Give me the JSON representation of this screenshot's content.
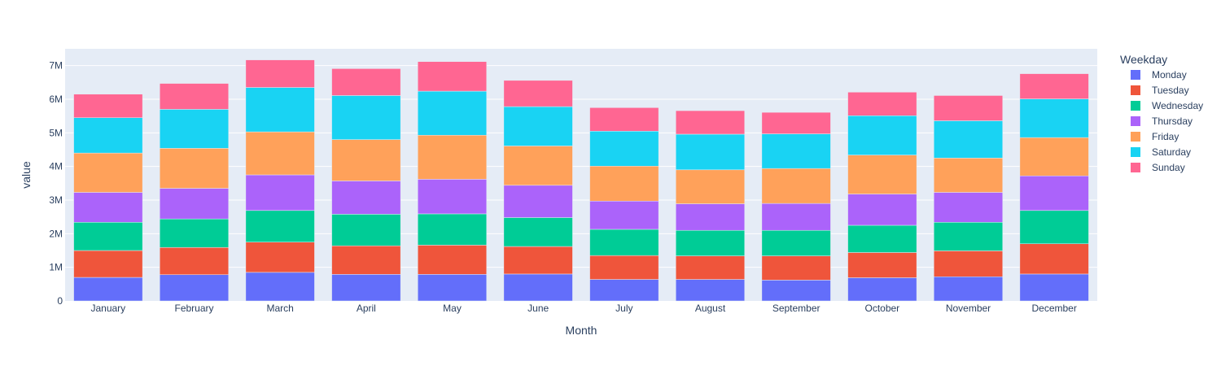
{
  "chart_data": {
    "type": "bar",
    "barmode": "stack",
    "xlabel": "Month",
    "ylabel": "value",
    "ylim": [
      0,
      7500000
    ],
    "y_ticks": [
      0,
      1000000,
      2000000,
      3000000,
      4000000,
      5000000,
      6000000,
      7000000
    ],
    "y_tick_labels": [
      "0",
      "1M",
      "2M",
      "3M",
      "4M",
      "5M",
      "6M",
      "7M"
    ],
    "grid": true,
    "legend_title": "Weekday",
    "legend_position": "right",
    "categories": [
      "January",
      "February",
      "March",
      "April",
      "May",
      "June",
      "July",
      "August",
      "September",
      "October",
      "November",
      "December"
    ],
    "series": [
      {
        "name": "Monday",
        "color": "#636efa",
        "values": [
          700000,
          780000,
          850000,
          790000,
          790000,
          800000,
          640000,
          640000,
          620000,
          690000,
          720000,
          800000
        ]
      },
      {
        "name": "Tuesday",
        "color": "#ef553b",
        "values": [
          800000,
          810000,
          900000,
          850000,
          870000,
          820000,
          710000,
          700000,
          720000,
          750000,
          770000,
          900000
        ]
      },
      {
        "name": "Wednesday",
        "color": "#00cc96",
        "values": [
          840000,
          850000,
          940000,
          940000,
          930000,
          860000,
          780000,
          760000,
          760000,
          810000,
          850000,
          990000
        ]
      },
      {
        "name": "Thursday",
        "color": "#ab63fa",
        "values": [
          890000,
          910000,
          1060000,
          990000,
          1030000,
          960000,
          840000,
          790000,
          800000,
          930000,
          890000,
          1030000
        ]
      },
      {
        "name": "Friday",
        "color": "#ffa15a",
        "values": [
          1170000,
          1190000,
          1280000,
          1230000,
          1310000,
          1170000,
          1040000,
          1010000,
          1040000,
          1160000,
          1020000,
          1140000
        ]
      },
      {
        "name": "Saturday",
        "color": "#19d3f3",
        "values": [
          1050000,
          1160000,
          1320000,
          1310000,
          1310000,
          1170000,
          1040000,
          1060000,
          1030000,
          1170000,
          1110000,
          1150000
        ]
      },
      {
        "name": "Sunday",
        "color": "#ff6692",
        "values": [
          700000,
          770000,
          820000,
          800000,
          880000,
          780000,
          700000,
          700000,
          640000,
          700000,
          750000,
          750000
        ]
      }
    ]
  }
}
